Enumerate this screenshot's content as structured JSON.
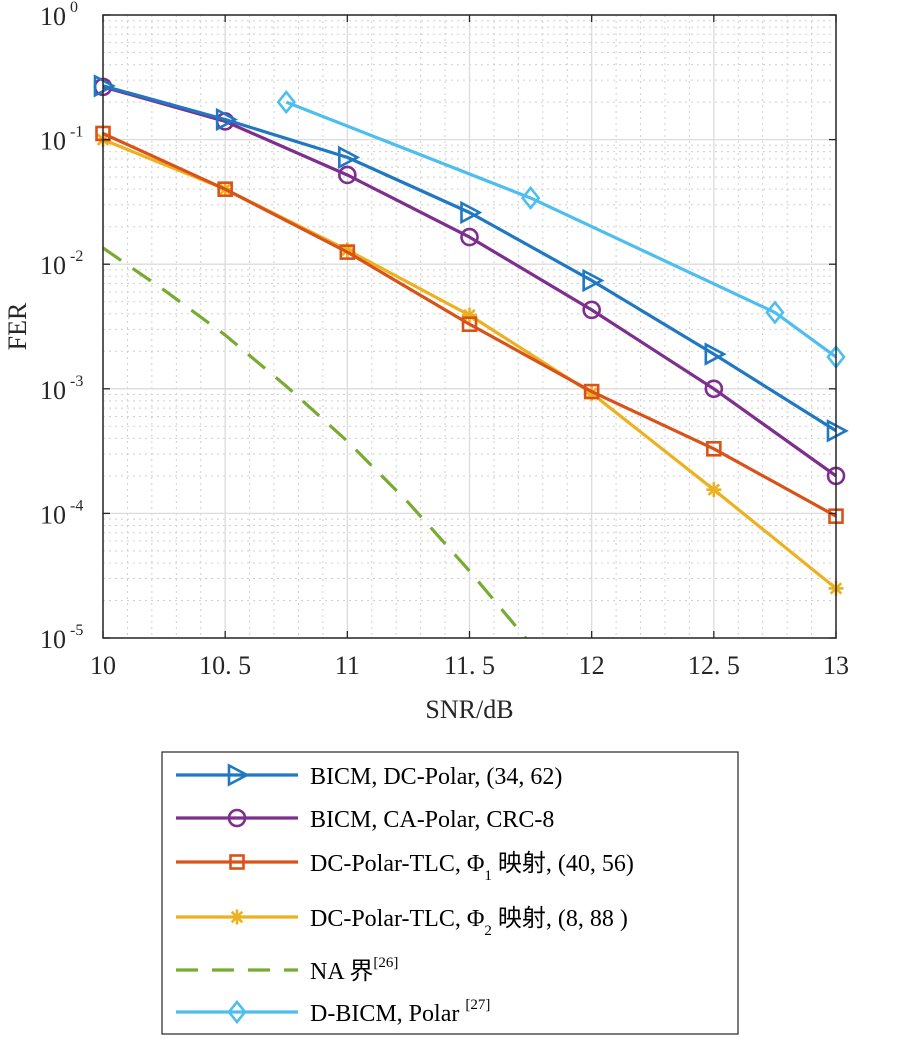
{
  "chart_data": {
    "type": "line",
    "xlabel": "SNR/dB",
    "ylabel": "FER",
    "xlim": [
      10,
      13
    ],
    "ylim": [
      1e-05,
      1
    ],
    "yscale": "log",
    "grid": true,
    "minor_grid": true,
    "legend_position": "below",
    "x_ticks": [
      {
        "value": 10,
        "label": "10"
      },
      {
        "value": 10.5,
        "label": "10. 5"
      },
      {
        "value": 11,
        "label": "11"
      },
      {
        "value": 11.5,
        "label": "11. 5"
      },
      {
        "value": 12,
        "label": "12"
      },
      {
        "value": 12.5,
        "label": "12. 5"
      },
      {
        "value": 13,
        "label": "13"
      }
    ],
    "y_ticks": [
      {
        "value": 1,
        "base": "10",
        "exp": "0"
      },
      {
        "value": 0.1,
        "base": "10",
        "exp": "-1"
      },
      {
        "value": 0.01,
        "base": "10",
        "exp": "-2"
      },
      {
        "value": 0.001,
        "base": "10",
        "exp": "-3"
      },
      {
        "value": 0.0001,
        "base": "10",
        "exp": "-4"
      },
      {
        "value": 1e-05,
        "base": "10",
        "exp": "-5"
      }
    ],
    "series": [
      {
        "legend": {
          "text": "BICM, DC-Polar, (34, 62)"
        },
        "color": "#1f78c1",
        "marker": "triangle-right",
        "dash": "solid",
        "x": [
          10,
          10.5,
          11,
          11.5,
          12,
          12.5,
          13
        ],
        "y": [
          0.27,
          0.145,
          0.072,
          0.026,
          0.0074,
          0.0019,
          0.00046
        ]
      },
      {
        "legend": {
          "text": "BICM, CA-Polar, CRC-8"
        },
        "color": "#7e2f8e",
        "marker": "circle",
        "dash": "solid",
        "x": [
          10,
          10.5,
          11,
          11.5,
          12,
          12.5,
          13
        ],
        "y": [
          0.265,
          0.14,
          0.052,
          0.0165,
          0.0043,
          0.001,
          0.0002
        ]
      },
      {
        "legend": {
          "text": "DC-Polar-TLC,  Φ",
          "sub": "1",
          "after": " 映射, (40, 56)"
        },
        "color": "#d95319",
        "marker": "square",
        "dash": "solid",
        "x": [
          10,
          10.5,
          11,
          11.5,
          12,
          12.5,
          13
        ],
        "y": [
          0.112,
          0.04,
          0.0125,
          0.0033,
          0.00095,
          0.00033,
          9.5e-05
        ]
      },
      {
        "legend": {
          "text": "DC-Polar-TLC,  Φ",
          "sub": "2",
          "after": " 映射, (8, 88 )"
        },
        "color": "#edb120",
        "marker": "asterisk",
        "dash": "solid",
        "x": [
          10,
          10.5,
          11,
          11.5,
          12,
          12.5,
          13
        ],
        "y": [
          0.1,
          0.04,
          0.013,
          0.0039,
          0.00092,
          0.000155,
          2.5e-05
        ]
      },
      {
        "legend": {
          "text": "NA 界",
          "sup": "[26]"
        },
        "color": "#77ac30",
        "marker": "none",
        "dash": "dashed",
        "x": [
          10,
          10.25,
          10.5,
          10.75,
          11,
          11.25,
          11.5,
          11.73
        ],
        "y": [
          0.0135,
          0.0062,
          0.0027,
          0.00105,
          0.00038,
          0.000122,
          3.45e-05,
          1e-05
        ]
      },
      {
        "legend": {
          "text": "D-BICM, Polar ",
          "sup": "[27]"
        },
        "color": "#4dbeee",
        "marker": "diamond",
        "dash": "solid",
        "x": [
          10.75,
          11.75,
          12.75,
          13
        ],
        "y": [
          0.2,
          0.034,
          0.0041,
          0.0018
        ]
      }
    ]
  }
}
